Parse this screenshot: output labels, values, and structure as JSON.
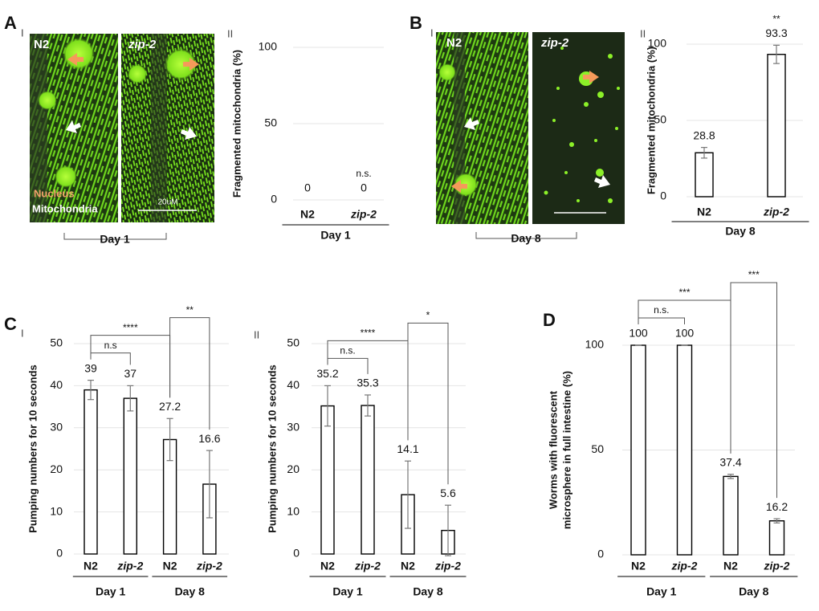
{
  "panel_letters": [
    "A",
    "B",
    "C",
    "D"
  ],
  "micrographs": [
    {
      "roman": "I",
      "images": [
        "N2",
        "zip-2"
      ],
      "legend": [
        "Nucleus",
        "Mitochondria"
      ],
      "scale": "20uM",
      "day": "Day 1"
    },
    {
      "roman": "I",
      "images": [
        "N2",
        "zip-2"
      ],
      "day": "Day 8"
    }
  ],
  "chart_data": [
    {
      "type": "bar",
      "subpanel": "II",
      "ylabel": [
        "Fragmented mitochondria (%)"
      ],
      "categories": [
        "N2",
        "zip-2"
      ],
      "groups": [
        "Day 1"
      ],
      "values": [
        0,
        0
      ],
      "annotations": [
        {
          "text": "n.s.",
          "between": [
            1
          ]
        }
      ],
      "ylim": [
        0,
        100
      ],
      "yticks": [
        0,
        50,
        100
      ],
      "grid": true,
      "color": "#ffffff"
    },
    {
      "type": "bar",
      "subpanel": "II",
      "ylabel": [
        "Fragmented mitochondria (%)"
      ],
      "categories": [
        "N2",
        "zip-2"
      ],
      "groups": [
        "Day 8"
      ],
      "values": [
        28.8,
        93.3
      ],
      "errors": [
        3.5,
        6
      ],
      "annotations": [
        {
          "text": "**",
          "between": [
            1
          ]
        }
      ],
      "ylim": [
        0,
        100
      ],
      "yticks": [
        0,
        50,
        100
      ],
      "grid": true,
      "color": "#ffffff"
    },
    {
      "type": "bar",
      "subpanel": "I",
      "ylabel": [
        "Pumping numbers for 10 seconds"
      ],
      "categories": [
        "N2",
        "zip-2",
        "N2",
        "zip-2"
      ],
      "groups": [
        "Day 1",
        "Day 8"
      ],
      "values": [
        39,
        37,
        27.2,
        16.6
      ],
      "errors": [
        2.3,
        3,
        5,
        8
      ],
      "annotations": [
        {
          "text": "n.s",
          "between": [
            0,
            1
          ]
        },
        {
          "text": "****",
          "between": [
            0,
            2
          ]
        },
        {
          "text": "**",
          "between": [
            2,
            3
          ]
        }
      ],
      "ylim": [
        0,
        50
      ],
      "yticks": [
        0,
        10,
        20,
        30,
        40,
        50
      ],
      "grid": true,
      "color": "#ffffff"
    },
    {
      "type": "bar",
      "subpanel": "II",
      "ylabel": [
        "Pumping numbers for 10 seconds"
      ],
      "categories": [
        "N2",
        "zip-2",
        "N2",
        "zip-2"
      ],
      "groups": [
        "Day 1",
        "Day 8"
      ],
      "values": [
        35.2,
        35.3,
        14.1,
        5.6
      ],
      "errors": [
        4.8,
        2.5,
        8,
        6
      ],
      "annotations": [
        {
          "text": "n.s.",
          "between": [
            0,
            1
          ]
        },
        {
          "text": "****",
          "between": [
            0,
            2
          ]
        },
        {
          "text": "*",
          "between": [
            2,
            3
          ]
        }
      ],
      "ylim": [
        0,
        50
      ],
      "yticks": [
        0,
        10,
        20,
        30,
        40,
        50
      ],
      "grid": true,
      "color": "#ffffff"
    },
    {
      "type": "bar",
      "ylabel": [
        "Worms with fluorescent",
        "microsphere in full intestine (%)"
      ],
      "categories": [
        "N2",
        "zip-2",
        "N2",
        "zip-2"
      ],
      "groups": [
        "Day 1",
        "Day 8"
      ],
      "values": [
        100,
        100,
        37.4,
        16.2
      ],
      "errors": [
        0,
        0,
        1,
        1
      ],
      "annotations": [
        {
          "text": "n.s.",
          "between": [
            0,
            1
          ]
        },
        {
          "text": "***",
          "between": [
            0,
            2
          ]
        },
        {
          "text": "***",
          "between": [
            2,
            3
          ]
        }
      ],
      "ylim": [
        0,
        100
      ],
      "yticks": [
        0,
        50,
        100
      ],
      "grid": true,
      "color": "#ffffff"
    }
  ]
}
